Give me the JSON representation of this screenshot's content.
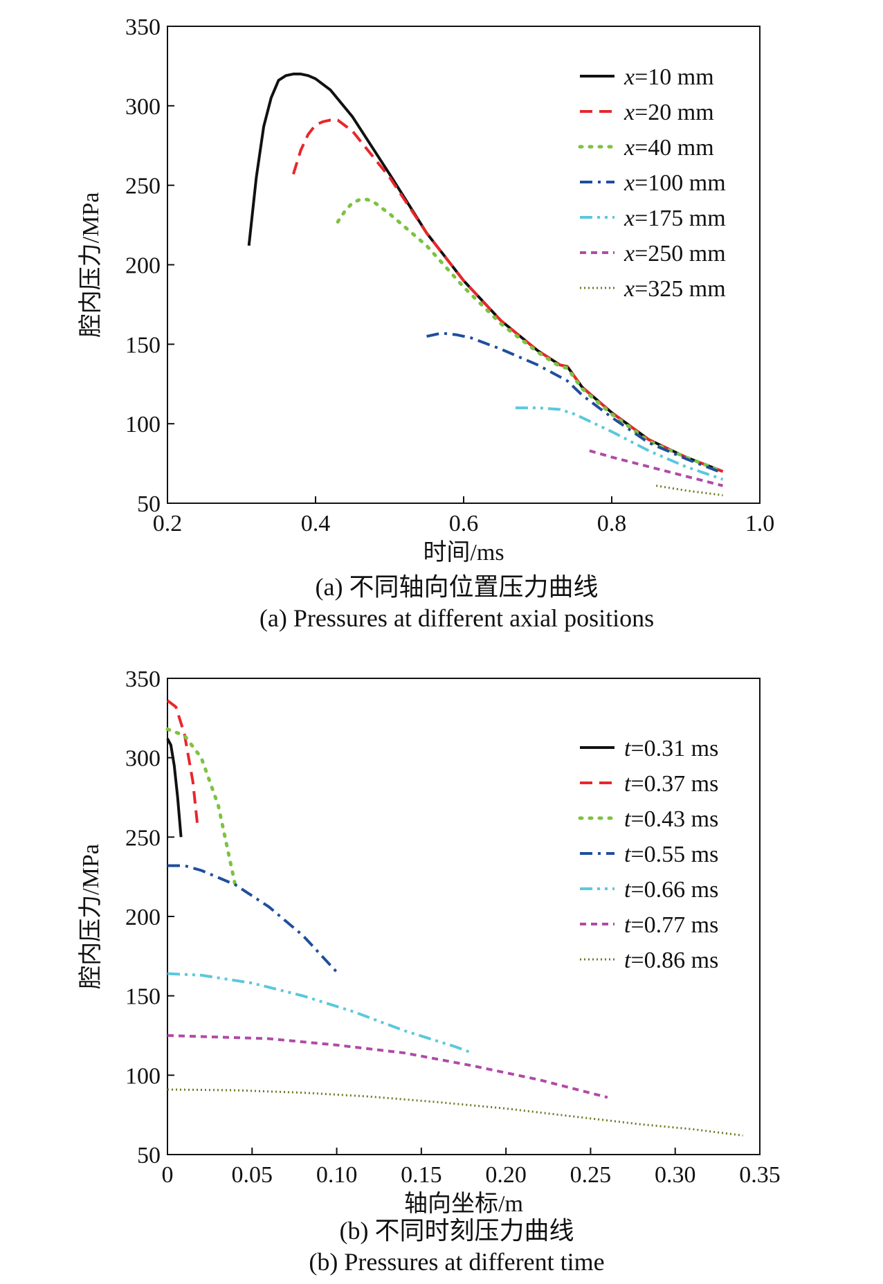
{
  "figures": [
    {
      "id": "a",
      "caption_cn": "(a) 不同轴向位置压力曲线",
      "caption_en": "(a) Pressures at different axial positions"
    },
    {
      "id": "b",
      "caption_cn": "(b) 不同时刻压力曲线",
      "caption_en": "(b) Pressures at different time"
    }
  ],
  "chart_data": [
    {
      "type": "line",
      "xlabel": "时间/ms",
      "ylabel": "腔内压力/MPa",
      "xlim": [
        0.2,
        1.0
      ],
      "ylim": [
        50,
        350
      ],
      "xticks": [
        "0.2",
        "0.4",
        "0.6",
        "0.8",
        "1.0"
      ],
      "xtick_values": [
        0.2,
        0.4,
        0.6,
        0.8,
        1.0
      ],
      "yticks": [
        "50",
        "100",
        "150",
        "200",
        "250",
        "300",
        "350"
      ],
      "ytick_values": [
        50,
        100,
        150,
        200,
        250,
        300,
        350
      ],
      "grid": false,
      "legend_position": "top-right",
      "series": [
        {
          "name": "x=10 mm",
          "var": "x",
          "rest": "=10 mm",
          "color": "#111111",
          "style": "solid",
          "x": [
            0.31,
            0.32,
            0.33,
            0.34,
            0.35,
            0.36,
            0.37,
            0.38,
            0.39,
            0.4,
            0.42,
            0.45,
            0.5,
            0.55,
            0.6,
            0.65,
            0.7,
            0.73,
            0.74,
            0.76,
            0.8,
            0.85,
            0.9,
            0.95
          ],
          "y": [
            212,
            255,
            287,
            305,
            316,
            319,
            320,
            320,
            319,
            317,
            310,
            293,
            257,
            220,
            190,
            165,
            146,
            137,
            136,
            123,
            107,
            90,
            79,
            70
          ]
        },
        {
          "name": "x=20 mm",
          "var": "x",
          "rest": "=20 mm",
          "color": "#e8262b",
          "style": "dash",
          "x": [
            0.37,
            0.38,
            0.39,
            0.4,
            0.41,
            0.42,
            0.43,
            0.45,
            0.5,
            0.55,
            0.6,
            0.65,
            0.7,
            0.73,
            0.74,
            0.76,
            0.8,
            0.85,
            0.9,
            0.95
          ],
          "y": [
            257,
            272,
            282,
            288,
            290,
            291,
            291,
            284,
            255,
            220,
            190,
            165,
            146,
            137,
            136,
            123,
            107,
            90,
            79,
            70
          ]
        },
        {
          "name": "x=40 mm",
          "var": "x",
          "rest": "=40 mm",
          "color": "#7dc242",
          "style": "dot",
          "x": [
            0.43,
            0.44,
            0.45,
            0.46,
            0.47,
            0.48,
            0.5,
            0.55,
            0.6,
            0.65,
            0.7,
            0.73,
            0.74,
            0.76,
            0.8,
            0.85,
            0.9,
            0.95
          ],
          "y": [
            227,
            234,
            239,
            241,
            241,
            239,
            232,
            212,
            186,
            163,
            145,
            136,
            135,
            122,
            106,
            89,
            79,
            70
          ]
        },
        {
          "name": "x=100 mm",
          "var": "x",
          "rest": "=100 mm",
          "color": "#1f4e9c",
          "style": "dashdot",
          "x": [
            0.55,
            0.57,
            0.59,
            0.61,
            0.65,
            0.7,
            0.74,
            0.76,
            0.8,
            0.85,
            0.9,
            0.95
          ],
          "y": [
            155,
            157,
            156,
            154,
            147,
            137,
            127,
            118,
            104,
            88,
            78,
            69
          ]
        },
        {
          "name": "x=175 mm",
          "var": "x",
          "rest": "=175 mm",
          "color": "#5bc8dc",
          "style": "dashdotdot",
          "x": [
            0.67,
            0.7,
            0.73,
            0.75,
            0.8,
            0.85,
            0.9,
            0.95
          ],
          "y": [
            110,
            110,
            109,
            106,
            95,
            83,
            73,
            65
          ]
        },
        {
          "name": "x=250 mm",
          "var": "x",
          "rest": "=250 mm",
          "color": "#b04aa6",
          "style": "shortdash",
          "x": [
            0.77,
            0.8,
            0.85,
            0.9,
            0.95
          ],
          "y": [
            83,
            79,
            73,
            67,
            61
          ]
        },
        {
          "name": "x=325 mm",
          "var": "x",
          "rest": "=325 mm",
          "color": "#6b7a22",
          "style": "finedot",
          "x": [
            0.86,
            0.9,
            0.95
          ],
          "y": [
            61,
            58,
            55
          ]
        }
      ]
    },
    {
      "type": "line",
      "xlabel": "轴向坐标/m",
      "ylabel": "腔内压力/MPa",
      "xlim": [
        0,
        0.35
      ],
      "ylim": [
        50,
        350
      ],
      "xticks": [
        "0",
        "0.05",
        "0.10",
        "0.15",
        "0.20",
        "0.25",
        "0.30",
        "0.35"
      ],
      "xtick_values": [
        0,
        0.05,
        0.1,
        0.15,
        0.2,
        0.25,
        0.3,
        0.35
      ],
      "yticks": [
        "50",
        "100",
        "150",
        "200",
        "250",
        "300",
        "350"
      ],
      "ytick_values": [
        50,
        100,
        150,
        200,
        250,
        300,
        350
      ],
      "grid": false,
      "legend_position": "right",
      "series": [
        {
          "name": "t=0.31 ms",
          "var": "t",
          "rest": "=0.31 ms",
          "color": "#111111",
          "style": "solid",
          "x": [
            0.0,
            0.002,
            0.004,
            0.006,
            0.008
          ],
          "y": [
            312,
            308,
            295,
            275,
            250
          ]
        },
        {
          "name": "t=0.37 ms",
          "var": "t",
          "rest": "=0.37 ms",
          "color": "#e8262b",
          "style": "dash",
          "x": [
            0.0,
            0.005,
            0.01,
            0.015,
            0.018
          ],
          "y": [
            336,
            332,
            315,
            285,
            255
          ]
        },
        {
          "name": "t=0.43 ms",
          "var": "t",
          "rest": "=0.43 ms",
          "color": "#7dc242",
          "style": "dot",
          "x": [
            0.0,
            0.01,
            0.02,
            0.03,
            0.04
          ],
          "y": [
            318,
            314,
            300,
            270,
            220
          ]
        },
        {
          "name": "t=0.55 ms",
          "var": "t",
          "rest": "=0.55 ms",
          "color": "#1f4e9c",
          "style": "dashdot",
          "x": [
            0.0,
            0.01,
            0.02,
            0.04,
            0.06,
            0.08,
            0.1
          ],
          "y": [
            232,
            232,
            229,
            220,
            206,
            188,
            165
          ]
        },
        {
          "name": "t=0.66 ms",
          "var": "t",
          "rest": "=0.66 ms",
          "color": "#5bc8dc",
          "style": "dashdotdot",
          "x": [
            0.0,
            0.02,
            0.05,
            0.08,
            0.11,
            0.14,
            0.17,
            0.18
          ],
          "y": [
            164,
            163,
            158,
            150,
            140,
            128,
            118,
            114
          ]
        },
        {
          "name": "t=0.77 ms",
          "var": "t",
          "rest": "=0.77 ms",
          "color": "#b04aa6",
          "style": "shortdash",
          "x": [
            0.0,
            0.03,
            0.06,
            0.1,
            0.14,
            0.18,
            0.22,
            0.26
          ],
          "y": [
            125,
            124,
            123,
            119,
            114,
            106,
            97,
            86
          ]
        },
        {
          "name": "t=0.86 ms",
          "var": "t",
          "rest": "=0.86 ms",
          "color": "#6b7a22",
          "style": "finedot",
          "x": [
            0.0,
            0.04,
            0.08,
            0.12,
            0.16,
            0.2,
            0.24,
            0.28,
            0.31,
            0.34
          ],
          "y": [
            91,
            90.5,
            89,
            86.5,
            83,
            79,
            74,
            69,
            66,
            62
          ]
        }
      ]
    }
  ]
}
